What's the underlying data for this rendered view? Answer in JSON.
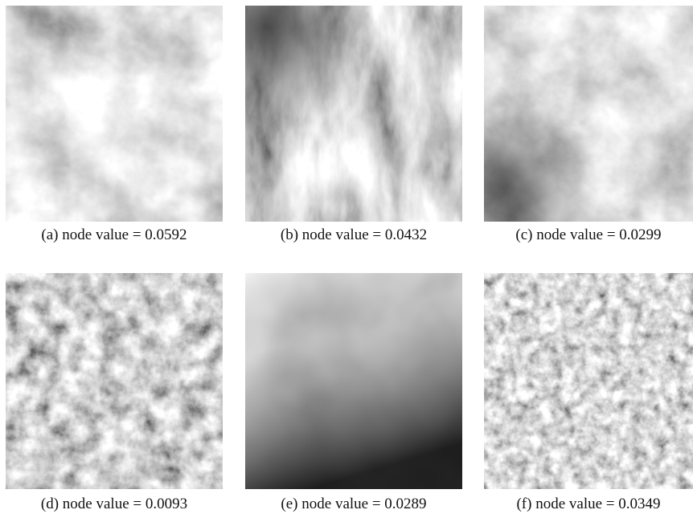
{
  "panels": [
    {
      "caption": "(a) node value = 0.0592"
    },
    {
      "caption": "(b) node value = 0.0432"
    },
    {
      "caption": "(c) node value = 0.0299"
    },
    {
      "caption": "(d) node value = 0.0093"
    },
    {
      "caption": "(e) node value = 0.0289"
    },
    {
      "caption": "(f) node value = 0.0349"
    }
  ]
}
